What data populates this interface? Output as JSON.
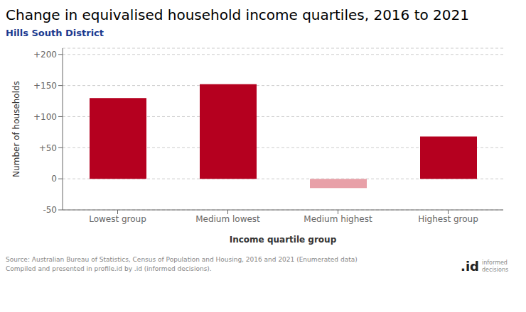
{
  "chart_data": {
    "type": "bar",
    "title": "Change in equivalised household income quartiles, 2016 to 2021",
    "subtitle": "Hills South District",
    "categories": [
      "Lowest group",
      "Medium lowest",
      "Medium highest",
      "Highest group"
    ],
    "values": [
      130,
      152,
      -15,
      68
    ],
    "colors": [
      "#b5001f",
      "#b5001f",
      "#e8a0a8",
      "#b5001f"
    ],
    "ylabel": "Number of households",
    "xlabel": "Income quartile group",
    "ylim": [
      -50,
      210
    ],
    "yticks": [
      -50,
      0,
      {
        "value": 50,
        "label": "+50"
      },
      {
        "value": 100,
        "label": "+100"
      },
      {
        "value": 150,
        "label": "+150"
      },
      {
        "value": 200,
        "label": "+200"
      }
    ],
    "grid": true,
    "annotations": [
      "Source: Australian Bureau of Statistics, Census of Population and Housing, 2016 and 2021 (Enumerated data)",
      "Compiled and presented in profile.id by .id (informed decisions).",
      ".id",
      "informed decisions"
    ]
  }
}
